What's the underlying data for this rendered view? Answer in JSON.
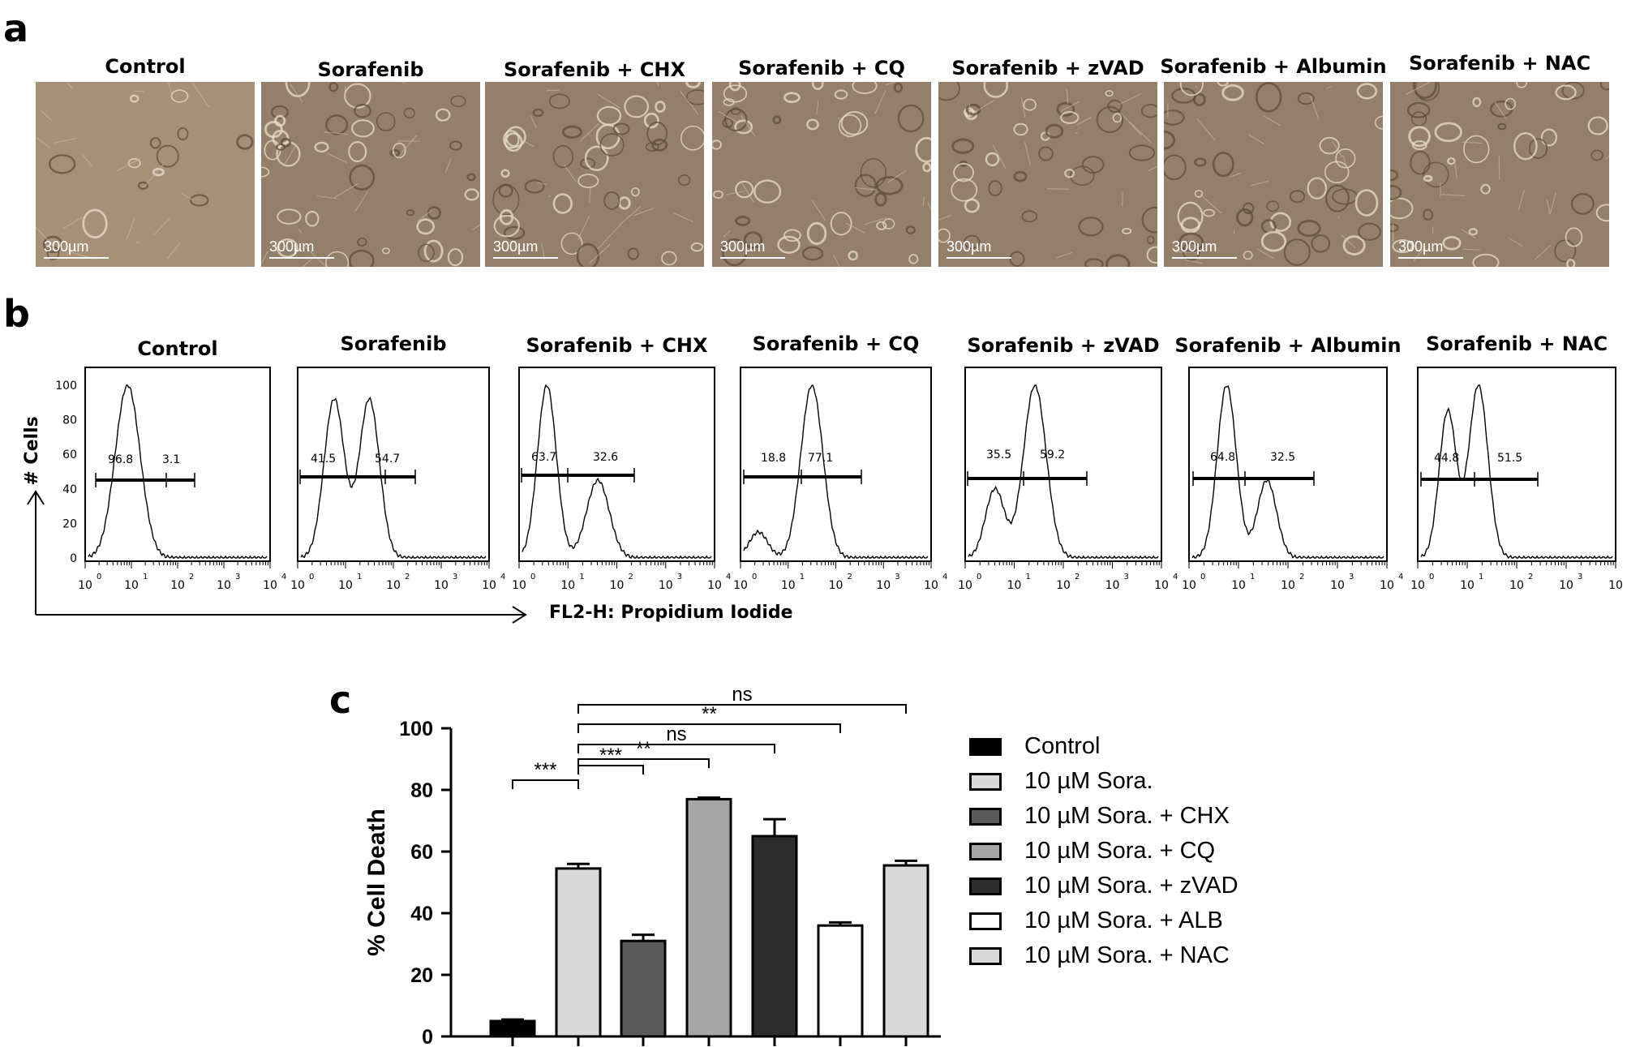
{
  "panel_letters": {
    "a": "a",
    "b": "b",
    "c": "c"
  },
  "panel_a": {
    "scale_label": "300µm",
    "conditions": [
      "Control",
      "Sorafenib",
      "Sorafenib + CHX",
      "Sorafenib + CQ",
      "Sorafenib + zVAD",
      "Sorafenib + Albumin",
      "Sorafenib + NAC"
    ]
  },
  "panel_b": {
    "conditions": [
      "Control",
      "Sorafenib",
      "Sorafenib + CHX",
      "Sorafenib + CQ",
      "Sorafenib + zVAD",
      "Sorafenib + Albumin",
      "Sorafenib + NAC"
    ],
    "y_axis_title": "# Cells",
    "x_axis_title": "FL2-H: Propidium Iodide",
    "y_ticks": [
      "0",
      "20",
      "40",
      "60",
      "80",
      "100"
    ],
    "x_tick_base": "10",
    "x_tick_exponents": [
      "0",
      "1",
      "2",
      "3",
      "4"
    ],
    "gate_values": [
      [
        "96.8",
        "3.1"
      ],
      [
        "41.5",
        "54.7"
      ],
      [
        "63.7",
        "32.6"
      ],
      [
        "18.8",
        "77.1"
      ],
      [
        "35.5",
        "59.2"
      ],
      [
        "64.8",
        "32.5"
      ],
      [
        "44.8",
        "51.5"
      ]
    ]
  },
  "chart_data": {
    "type": "bar",
    "categories": [
      "Control",
      "10 µM Sora.",
      "10 µM Sora. + CHX",
      "10 µM Sora. + CQ",
      "10 µM Sora. + zVAD",
      "10 µM Sora. + ALB",
      "10 µM Sora. + NAC"
    ],
    "values": [
      5,
      54.5,
      31,
      77,
      65,
      36,
      55.5
    ],
    "errors": [
      0.5,
      1.5,
      2,
      0.5,
      5.5,
      1,
      1.5
    ],
    "colors": [
      "#000000",
      "#d9d9d9",
      "#5a5a5a",
      "#a6a6a6",
      "#2d2d2d",
      "#ffffff",
      "#d9d9d9"
    ],
    "ylabel": "% Cell Death",
    "ylim": [
      0,
      100
    ],
    "yticks": [
      "0",
      "20",
      "40",
      "60",
      "80",
      "100"
    ],
    "legend": [
      "Control",
      "10 µM Sora.",
      "10 µM Sora. + CHX",
      "10 µM Sora. + CQ",
      "10 µM Sora. + zVAD",
      "10 µM Sora. + ALB",
      "10 µM Sora. + NAC"
    ],
    "legend_placement": "right",
    "significance": [
      {
        "from": 0,
        "to": 1,
        "label": "***"
      },
      {
        "from": 1,
        "to": 2,
        "label": "***"
      },
      {
        "from": 1,
        "to": 3,
        "label": "**"
      },
      {
        "from": 1,
        "to": 4,
        "label": "ns"
      },
      {
        "from": 1,
        "to": 5,
        "label": "**"
      },
      {
        "from": 1,
        "to": 6,
        "label": "ns"
      }
    ]
  }
}
